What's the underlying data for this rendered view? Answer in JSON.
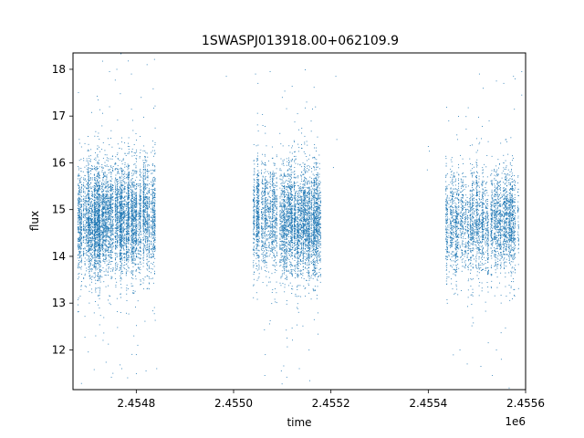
{
  "chart_data": {
    "type": "scatter",
    "title": "1SWASPJ013918.00+062109.9",
    "xlabel": "time",
    "ylabel": "flux",
    "x_offset_label": "1e6",
    "xlim": [
      2454670,
      2455600
    ],
    "ylim": [
      11.15,
      18.35
    ],
    "x_ticks": [
      {
        "value": 2454800,
        "label": "2.4548"
      },
      {
        "value": 2455000,
        "label": "2.4550"
      },
      {
        "value": 2455200,
        "label": "2.4552"
      },
      {
        "value": 2455400,
        "label": "2.4554"
      },
      {
        "value": 2455600,
        "label": "2.4556"
      }
    ],
    "y_ticks": [
      {
        "value": 12,
        "label": "12"
      },
      {
        "value": 13,
        "label": "13"
      },
      {
        "value": 14,
        "label": "14"
      },
      {
        "value": 15,
        "label": "15"
      },
      {
        "value": 16,
        "label": "16"
      },
      {
        "value": 17,
        "label": "17"
      },
      {
        "value": 18,
        "label": "18"
      }
    ],
    "grid": false,
    "marker_color": "#1f77b4",
    "series": [
      {
        "clusters": [
          {
            "x_start": 2454680,
            "x_end": 2454845,
            "y_center": 14.8,
            "y_spread": 0.55,
            "density": 70
          },
          {
            "x_start": 2455040,
            "x_end": 2455185,
            "y_center": 14.75,
            "y_spread": 0.55,
            "density": 55
          },
          {
            "x_start": 2455435,
            "x_end": 2455585,
            "y_center": 14.7,
            "y_spread": 0.5,
            "density": 40
          }
        ],
        "outliers": [
          [
            2454745,
            17.95
          ],
          [
            2454760,
            18.0
          ],
          [
            2454790,
            17.9
          ],
          [
            2454810,
            17.4
          ],
          [
            2454745,
            17.2
          ],
          [
            2454770,
            16.3
          ],
          [
            2454752,
            11.5
          ],
          [
            2454770,
            11.6
          ],
          [
            2454800,
            11.9
          ],
          [
            2454820,
            11.55
          ],
          [
            2454842,
            11.6
          ],
          [
            2454795,
            12.3
          ],
          [
            2454803,
            12.1
          ],
          [
            2454745,
            13.0
          ],
          [
            2454768,
            12.8
          ],
          [
            2454985,
            17.85
          ],
          [
            2455045,
            17.9
          ],
          [
            2455050,
            17.7
          ],
          [
            2455060,
            16.8
          ],
          [
            2455075,
            17.95
          ],
          [
            2455100,
            17.4
          ],
          [
            2455150,
            17.3
          ],
          [
            2455162,
            17.15
          ],
          [
            2455065,
            11.9
          ],
          [
            2455098,
            11.55
          ],
          [
            2455135,
            11.6
          ],
          [
            2455155,
            12.0
          ],
          [
            2455210,
            17.85
          ],
          [
            2455212,
            16.5
          ],
          [
            2455205,
            15.9
          ],
          [
            2455400,
            16.35
          ],
          [
            2455402,
            16.25
          ],
          [
            2455398,
            15.85
          ],
          [
            2455442,
            16.9
          ],
          [
            2455460,
            16.5
          ],
          [
            2455505,
            17.9
          ],
          [
            2455540,
            17.75
          ],
          [
            2455555,
            17.7
          ],
          [
            2455575,
            17.85
          ],
          [
            2455592,
            17.95
          ],
          [
            2455592,
            17.45
          ],
          [
            2455465,
            12.0
          ],
          [
            2455480,
            11.7
          ],
          [
            2455508,
            11.65
          ],
          [
            2455540,
            12.0
          ],
          [
            2455550,
            11.8
          ],
          [
            2455525,
            16.9
          ],
          [
            2455560,
            16.5
          ]
        ]
      }
    ]
  }
}
